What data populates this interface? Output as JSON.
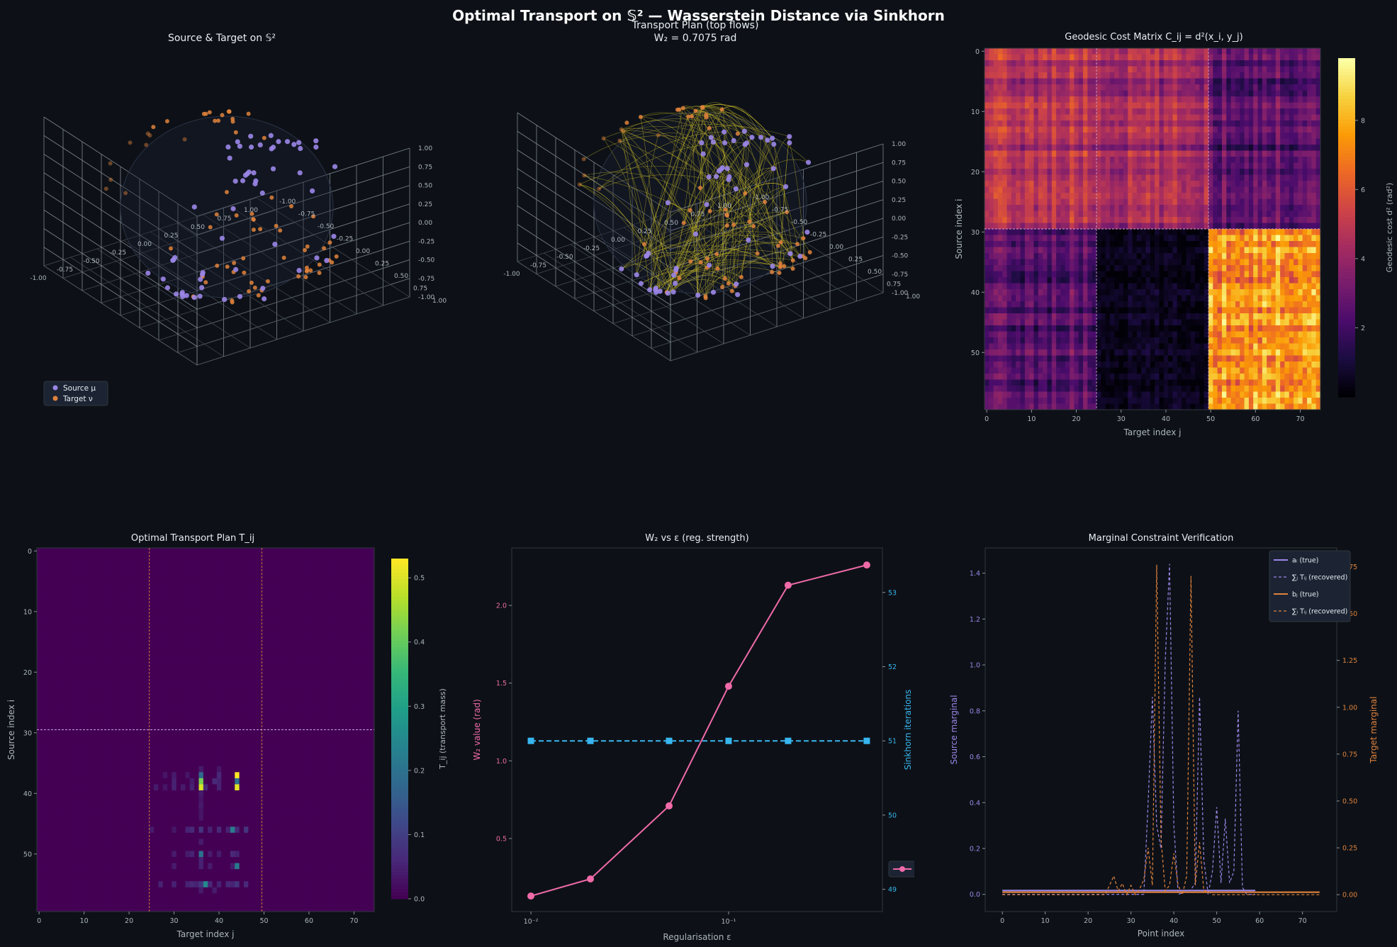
{
  "figure_title": "Optimal Transport on 𝕊² — Wasserstein Distance via Sinkhorn",
  "colors": {
    "background": "#0d1117",
    "source": "#9b86e8",
    "target": "#e0823c",
    "w2": "#f06aa8",
    "iter": "#38b6f0",
    "flow": "#d4c22a",
    "grid": "#8b949e"
  },
  "chart_data": [
    {
      "type": "scatter",
      "panel": "3d-scatter",
      "title": "Source & Target on 𝕊²",
      "axis_ticks": [
        "-1.00",
        "-0.75",
        "-0.50",
        "-0.25",
        "0.00",
        "0.25",
        "0.50",
        "0.75",
        "1.00"
      ],
      "legend": [
        {
          "label": "Source μ",
          "color": "#9b86e8"
        },
        {
          "label": "Target ν",
          "color": "#e0823c"
        }
      ],
      "legend_position": "lower-left",
      "source_count": 60,
      "target_count": 75
    },
    {
      "type": "scatter",
      "panel": "3d-flows",
      "title_line1": "Transport Plan  (top flows)",
      "title_line2": "W₂ = 0.7075 rad",
      "axis_ticks": [
        "-1.00",
        "-0.75",
        "-0.50",
        "-0.25",
        "0.00",
        "0.25",
        "0.50",
        "0.75",
        "1.00"
      ]
    },
    {
      "type": "heatmap",
      "panel": "cost-matrix",
      "title": "Geodesic Cost Matrix C_ij = d²(x_i, y_j)",
      "xlabel": "Target index j",
      "ylabel": "Source index i",
      "xticks": [
        0,
        10,
        20,
        30,
        40,
        50,
        60,
        70
      ],
      "yticks": [
        0,
        10,
        20,
        30,
        40,
        50
      ],
      "colorbar_label": "Geodesic cost d² (rad²)",
      "colorbar_ticks": [
        2,
        4,
        6,
        8
      ],
      "colorbar_range": [
        0,
        9.8
      ],
      "rows": 60,
      "cols": 75,
      "block_rows": [
        30,
        30
      ],
      "block_cols": [
        25,
        25,
        25
      ],
      "block_means": [
        [
          4.6,
          4.2,
          2.6
        ],
        [
          2.4,
          0.4,
          7.6
        ]
      ],
      "colormap": "inferno"
    },
    {
      "type": "heatmap",
      "panel": "transport-plan",
      "title": "Optimal Transport Plan T_ij",
      "xlabel": "Target index j",
      "ylabel": "Source index i",
      "xticks": [
        0,
        10,
        20,
        30,
        40,
        50,
        60,
        70
      ],
      "yticks": [
        0,
        10,
        20,
        30,
        40,
        50
      ],
      "colorbar_label": "T_ij (transport mass)",
      "colorbar_ticks": [
        0.0,
        0.1,
        0.2,
        0.3,
        0.4,
        0.5
      ],
      "colorbar_range": [
        0,
        0.53
      ],
      "rows": 60,
      "cols": 75,
      "colormap": "viridis",
      "nonzero": [
        {
          "i": 36,
          "j": 36,
          "v": 0.04
        },
        {
          "i": 36,
          "j": 40,
          "v": 0.03
        },
        {
          "i": 37,
          "j": 28,
          "v": 0.03
        },
        {
          "i": 37,
          "j": 30,
          "v": 0.04
        },
        {
          "i": 37,
          "j": 33,
          "v": 0.03
        },
        {
          "i": 37,
          "j": 36,
          "v": 0.18
        },
        {
          "i": 37,
          "j": 40,
          "v": 0.06
        },
        {
          "i": 37,
          "j": 44,
          "v": 0.53
        },
        {
          "i": 38,
          "j": 30,
          "v": 0.05
        },
        {
          "i": 38,
          "j": 34,
          "v": 0.04
        },
        {
          "i": 38,
          "j": 36,
          "v": 0.42
        },
        {
          "i": 38,
          "j": 39,
          "v": 0.06
        },
        {
          "i": 38,
          "j": 40,
          "v": 0.05
        },
        {
          "i": 38,
          "j": 44,
          "v": 0.2
        },
        {
          "i": 39,
          "j": 26,
          "v": 0.04
        },
        {
          "i": 39,
          "j": 28,
          "v": 0.03
        },
        {
          "i": 39,
          "j": 30,
          "v": 0.05
        },
        {
          "i": 39,
          "j": 32,
          "v": 0.04
        },
        {
          "i": 39,
          "j": 34,
          "v": 0.05
        },
        {
          "i": 39,
          "j": 36,
          "v": 0.5
        },
        {
          "i": 39,
          "j": 37,
          "v": 0.06
        },
        {
          "i": 39,
          "j": 40,
          "v": 0.05
        },
        {
          "i": 39,
          "j": 44,
          "v": 0.51
        },
        {
          "i": 40,
          "j": 36,
          "v": 0.04
        },
        {
          "i": 41,
          "j": 36,
          "v": 0.03
        },
        {
          "i": 42,
          "j": 36,
          "v": 0.04
        },
        {
          "i": 43,
          "j": 36,
          "v": 0.03
        },
        {
          "i": 44,
          "j": 36,
          "v": 0.03
        },
        {
          "i": 46,
          "j": 25,
          "v": 0.04
        },
        {
          "i": 46,
          "j": 30,
          "v": 0.03
        },
        {
          "i": 46,
          "j": 33,
          "v": 0.05
        },
        {
          "i": 46,
          "j": 34,
          "v": 0.06
        },
        {
          "i": 46,
          "j": 36,
          "v": 0.08
        },
        {
          "i": 46,
          "j": 38,
          "v": 0.05
        },
        {
          "i": 46,
          "j": 40,
          "v": 0.06
        },
        {
          "i": 46,
          "j": 42,
          "v": 0.05
        },
        {
          "i": 46,
          "j": 43,
          "v": 0.22
        },
        {
          "i": 46,
          "j": 44,
          "v": 0.06
        },
        {
          "i": 46,
          "j": 46,
          "v": 0.08
        },
        {
          "i": 48,
          "j": 36,
          "v": 0.04
        },
        {
          "i": 50,
          "j": 30,
          "v": 0.04
        },
        {
          "i": 50,
          "j": 33,
          "v": 0.04
        },
        {
          "i": 50,
          "j": 34,
          "v": 0.05
        },
        {
          "i": 50,
          "j": 36,
          "v": 0.2
        },
        {
          "i": 50,
          "j": 38,
          "v": 0.04
        },
        {
          "i": 50,
          "j": 40,
          "v": 0.04
        },
        {
          "i": 50,
          "j": 43,
          "v": 0.06
        },
        {
          "i": 50,
          "j": 44,
          "v": 0.05
        },
        {
          "i": 51,
          "j": 36,
          "v": 0.05
        },
        {
          "i": 52,
          "j": 30,
          "v": 0.04
        },
        {
          "i": 52,
          "j": 36,
          "v": 0.05
        },
        {
          "i": 52,
          "j": 38,
          "v": 0.04
        },
        {
          "i": 52,
          "j": 43,
          "v": 0.04
        },
        {
          "i": 52,
          "j": 44,
          "v": 0.22
        },
        {
          "i": 55,
          "j": 27,
          "v": 0.05
        },
        {
          "i": 55,
          "j": 30,
          "v": 0.05
        },
        {
          "i": 55,
          "j": 33,
          "v": 0.05
        },
        {
          "i": 55,
          "j": 34,
          "v": 0.06
        },
        {
          "i": 55,
          "j": 35,
          "v": 0.05
        },
        {
          "i": 55,
          "j": 36,
          "v": 0.08
        },
        {
          "i": 55,
          "j": 37,
          "v": 0.25
        },
        {
          "i": 55,
          "j": 38,
          "v": 0.06
        },
        {
          "i": 55,
          "j": 40,
          "v": 0.05
        },
        {
          "i": 55,
          "j": 42,
          "v": 0.06
        },
        {
          "i": 55,
          "j": 43,
          "v": 0.05
        },
        {
          "i": 55,
          "j": 44,
          "v": 0.08
        },
        {
          "i": 55,
          "j": 46,
          "v": 0.06
        },
        {
          "i": 56,
          "j": 36,
          "v": 0.04
        },
        {
          "i": 56,
          "j": 39,
          "v": 0.04
        }
      ]
    },
    {
      "type": "line",
      "panel": "w2-vs-eps",
      "title": "W₂ vs ε  (reg. strength)",
      "xlabel": "Regularisation ε",
      "ylabel_left": "W₂ value (rad)",
      "ylabel_right": "Sinkhorn iterations",
      "xscale": "log",
      "x": [
        0.01,
        0.02,
        0.05,
        0.1,
        0.2,
        0.5
      ],
      "xticks": [
        {
          "value": 0.01,
          "label": "10⁻²"
        },
        {
          "value": 0.1,
          "label": "10⁻¹"
        }
      ],
      "xlim": [
        0.008,
        0.6
      ],
      "series": [
        {
          "name": "W₂ (rad)",
          "axis": "left",
          "values": [
            0.13,
            0.24,
            0.71,
            1.48,
            2.13,
            2.26
          ],
          "color": "#f06aa8",
          "marker": "circle",
          "dash": "solid"
        },
        {
          "name": "Iterations",
          "axis": "right",
          "values": [
            51,
            51,
            51,
            51,
            51,
            51
          ],
          "color": "#38b6f0",
          "marker": "square",
          "dash": "dashed"
        }
      ],
      "ylim_left": [
        0.03,
        2.37
      ],
      "yticks_left": [
        0.5,
        1.0,
        1.5,
        2.0
      ],
      "ylim_right": [
        48.7,
        53.6
      ],
      "yticks_right": [
        49,
        50,
        51,
        52,
        53
      ],
      "legend_position": "lower-right"
    },
    {
      "type": "line",
      "panel": "marginals",
      "title": "Marginal Constraint Verification",
      "xlabel": "Point index",
      "ylabel_left": "Source marginal",
      "ylabel_right": "Target marginal",
      "xlim": [
        -4,
        78
      ],
      "xticks": [
        0,
        10,
        20,
        30,
        40,
        50,
        60,
        70
      ],
      "ylim_left": [
        -0.075,
        1.51
      ],
      "yticks_left": [
        0.0,
        0.2,
        0.4,
        0.6,
        0.8,
        1.0,
        1.2,
        1.4
      ],
      "ylim_right": [
        -0.09,
        1.85
      ],
      "yticks_right": [
        0.0,
        0.25,
        0.5,
        0.75,
        1.0,
        1.25,
        1.5,
        1.75
      ],
      "legend": [
        {
          "label": "aᵢ (true)",
          "color": "#9b86e8",
          "dash": "solid"
        },
        {
          "label": "∑ⱼ Tᵢⱼ (recovered)",
          "color": "#9b86e8",
          "dash": "dashed"
        },
        {
          "label": "bⱼ (true)",
          "color": "#e0823c",
          "dash": "solid"
        },
        {
          "label": "∑ᵢ Tᵢⱼ (recovered)",
          "color": "#e0823c",
          "dash": "dashed"
        }
      ],
      "legend_position": "upper-right",
      "series": [
        {
          "name": "aᵢ (true)",
          "axis": "left",
          "x_range": [
            0,
            59
          ],
          "constant": 0.0167
        },
        {
          "name": "∑ⱼ Tᵢⱼ (recovered)",
          "axis": "left",
          "points": [
            [
              0,
              0.0
            ],
            [
              33,
              0.0
            ],
            [
              34,
              0.4
            ],
            [
              35,
              0.86
            ],
            [
              36,
              0.3
            ],
            [
              37,
              0.2
            ],
            [
              38,
              1.02
            ],
            [
              39,
              1.44
            ],
            [
              40,
              0.3
            ],
            [
              41,
              0.0
            ],
            [
              44,
              0.02
            ],
            [
              45,
              0.05
            ],
            [
              46,
              0.86
            ],
            [
              47,
              0.15
            ],
            [
              48,
              0.0
            ],
            [
              49,
              0.1
            ],
            [
              50,
              0.38
            ],
            [
              51,
              0.05
            ],
            [
              52,
              0.33
            ],
            [
              53,
              0.05
            ],
            [
              54,
              0.1
            ],
            [
              55,
              0.8
            ],
            [
              56,
              0.03
            ],
            [
              57,
              0.0
            ],
            [
              59,
              0.0
            ]
          ]
        },
        {
          "name": "bⱼ (true)",
          "axis": "right",
          "x_range": [
            0,
            74
          ],
          "constant": 0.0133
        },
        {
          "name": "∑ᵢ Tᵢⱼ (recovered)",
          "axis": "right",
          "points": [
            [
              0,
              0.0
            ],
            [
              24,
              0.0
            ],
            [
              25,
              0.05
            ],
            [
              26,
              0.1
            ],
            [
              27,
              0.02
            ],
            [
              28,
              0.06
            ],
            [
              29,
              0.0
            ],
            [
              30,
              0.05
            ],
            [
              31,
              0.0
            ],
            [
              32,
              0.03
            ],
            [
              33,
              0.08
            ],
            [
              34,
              0.25
            ],
            [
              35,
              0.05
            ],
            [
              36,
              1.76
            ],
            [
              37,
              0.3
            ],
            [
              38,
              0.02
            ],
            [
              39,
              0.05
            ],
            [
              40,
              0.22
            ],
            [
              41,
              0.05
            ],
            [
              42,
              0.0
            ],
            [
              43,
              0.1
            ],
            [
              44,
              1.7
            ],
            [
              45,
              0.05
            ],
            [
              46,
              0.28
            ],
            [
              47,
              0.02
            ],
            [
              48,
              0.02
            ],
            [
              49,
              0.0
            ],
            [
              74,
              0.0
            ]
          ]
        }
      ]
    }
  ]
}
